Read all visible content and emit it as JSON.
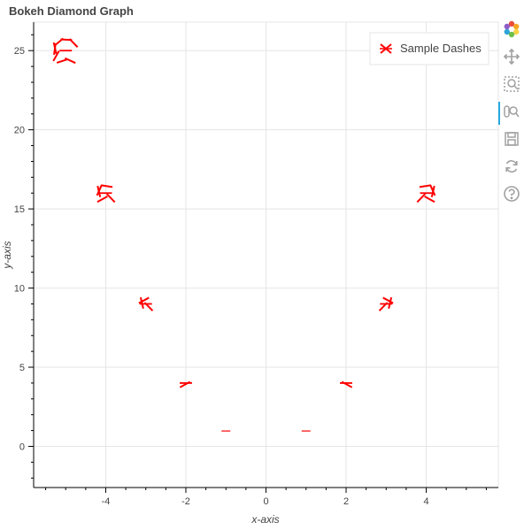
{
  "chart_data": {
    "type": "scatter",
    "title": "Bokeh Diamond Graph",
    "xlabel": "x-axis",
    "ylabel": "y-axis",
    "xlim": [
      -5.8,
      5.8
    ],
    "ylim": [
      -2.6,
      26.8
    ],
    "x_ticks": [
      -4,
      -2,
      0,
      2,
      4
    ],
    "y_ticks": [
      0,
      5,
      10,
      15,
      20,
      25
    ],
    "grid": true,
    "legend_position": "top-right",
    "marker": "dash",
    "color": "#ff0000",
    "series": [
      {
        "name": "Sample Dashes",
        "x": [
          -5,
          -4,
          -3,
          -2,
          -1,
          1,
          2,
          3,
          4,
          5
        ],
        "y": [
          25,
          16,
          9,
          4,
          1,
          1,
          4,
          9,
          16,
          25
        ]
      }
    ]
  },
  "toolbar": {
    "tools": [
      "bokeh-logo-icon",
      "pan-icon",
      "box-zoom-icon",
      "wheel-zoom-icon",
      "save-icon",
      "reset-icon",
      "help-icon"
    ]
  }
}
